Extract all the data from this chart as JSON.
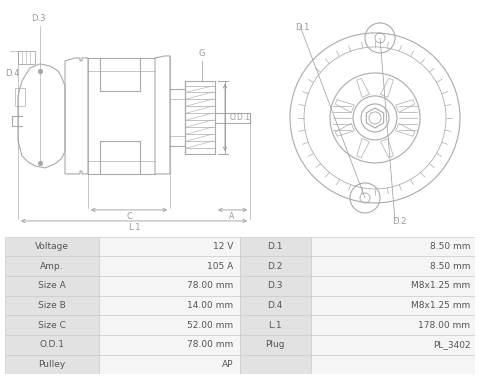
{
  "bg_color": "#ffffff",
  "table_bg_label": "#e2e2e2",
  "table_bg_value": "#f5f5f5",
  "table_border": "#cccccc",
  "table_text_color": "#555555",
  "rows_left": [
    [
      "Voltage",
      "12 V"
    ],
    [
      "Amp.",
      "105 A"
    ],
    [
      "Size A",
      "78.00 mm"
    ],
    [
      "Size B",
      "14.00 mm"
    ],
    [
      "Size C",
      "52.00 mm"
    ],
    [
      "O.D.1",
      "78.00 mm"
    ],
    [
      "Pulley",
      "AP"
    ]
  ],
  "rows_right": [
    [
      "D.1",
      "8.50 mm"
    ],
    [
      "D.2",
      "8.50 mm"
    ],
    [
      "D.3",
      "M8x1.25 mm"
    ],
    [
      "D.4",
      "M8x1.25 mm"
    ],
    [
      "L.1",
      "178.00 mm"
    ],
    [
      "Plug",
      "PL_3402"
    ],
    [
      "",
      ""
    ]
  ],
  "lc": "#aaaaaa",
  "dc": "#888888",
  "dim_color": "#999999"
}
